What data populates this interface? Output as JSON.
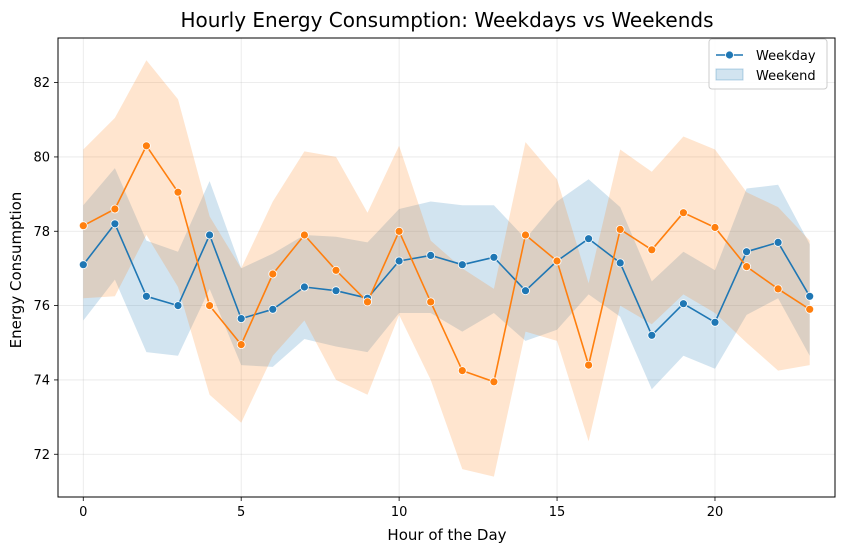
{
  "chart_data": {
    "type": "line",
    "title": "Hourly Energy Consumption: Weekdays vs Weekends",
    "xlabel": "Hour of the Day",
    "ylabel": "Energy Consumption",
    "xlim": [
      -0.8,
      23.8
    ],
    "ylim": [
      70.85,
      83.2
    ],
    "xticks": [
      0,
      5,
      10,
      15,
      20
    ],
    "yticks": [
      72,
      74,
      76,
      78,
      80,
      82
    ],
    "grid": true,
    "legend_position": "top-right",
    "legend": [
      "Weekday",
      "Weekend"
    ],
    "x": [
      0,
      1,
      2,
      3,
      4,
      5,
      6,
      7,
      8,
      9,
      10,
      11,
      12,
      13,
      14,
      15,
      16,
      17,
      18,
      19,
      20,
      21,
      22,
      23
    ],
    "series": [
      {
        "name": "Weekday",
        "color": "#1f77b4",
        "values": [
          77.1,
          78.2,
          76.25,
          76.0,
          77.9,
          75.65,
          75.9,
          76.5,
          76.4,
          76.2,
          77.2,
          77.35,
          77.1,
          77.3,
          76.4,
          77.2,
          77.8,
          77.15,
          75.2,
          76.05,
          75.55,
          77.45,
          77.7,
          76.25
        ],
        "ci_lower": [
          75.6,
          76.7,
          74.75,
          74.65,
          76.45,
          74.4,
          74.35,
          75.1,
          74.9,
          74.75,
          75.8,
          75.8,
          75.3,
          75.8,
          75.05,
          75.35,
          76.3,
          75.7,
          73.75,
          74.65,
          74.3,
          75.75,
          76.2,
          74.65
        ],
        "ci_upper": [
          78.7,
          79.7,
          77.75,
          77.45,
          79.35,
          77.0,
          77.4,
          77.9,
          77.85,
          77.7,
          78.6,
          78.8,
          78.7,
          78.7,
          77.8,
          78.8,
          79.4,
          78.65,
          76.65,
          77.45,
          76.95,
          79.15,
          79.25,
          77.65
        ]
      },
      {
        "name": "Weekend",
        "color": "#ff7f0e",
        "values": [
          78.15,
          78.6,
          80.3,
          79.05,
          76.0,
          74.95,
          76.85,
          77.9,
          76.95,
          76.1,
          78.0,
          76.1,
          74.25,
          73.95,
          77.9,
          77.2,
          74.4,
          78.05,
          77.5,
          78.5,
          78.1,
          77.05,
          76.45,
          75.9
        ],
        "ci_lower": [
          76.2,
          76.25,
          77.9,
          76.5,
          73.6,
          72.85,
          74.65,
          75.6,
          74.0,
          73.6,
          75.75,
          74.0,
          71.6,
          71.4,
          75.3,
          75.05,
          72.35,
          76.0,
          75.5,
          76.3,
          75.8,
          75.0,
          74.25,
          74.4
        ],
        "ci_upper": [
          80.2,
          81.05,
          82.6,
          81.55,
          78.4,
          77.0,
          78.8,
          80.15,
          80.0,
          78.5,
          80.3,
          77.75,
          77.0,
          76.45,
          80.4,
          79.4,
          76.6,
          80.2,
          79.6,
          80.55,
          80.2,
          79.05,
          78.65,
          77.75
        ]
      }
    ]
  }
}
